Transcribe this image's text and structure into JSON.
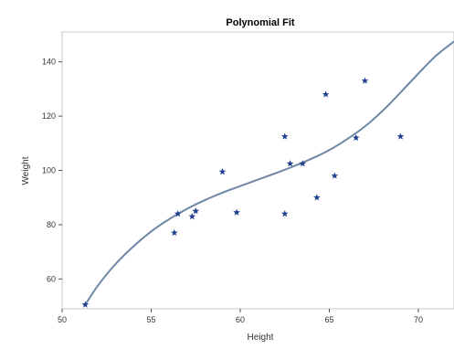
{
  "chart_data": {
    "type": "scatter",
    "title": "Polynomial Fit",
    "xlabel": "Height",
    "ylabel": "Weight",
    "xlim": [
      50,
      72
    ],
    "ylim": [
      49,
      151
    ],
    "xticks": [
      50,
      55,
      60,
      65,
      70
    ],
    "yticks": [
      60,
      80,
      100,
      120,
      140
    ],
    "grid": false,
    "series": [
      {
        "marker": "star",
        "color": "#1f3f8f",
        "points": [
          [
            51.3,
            50.5
          ],
          [
            56.3,
            77.0
          ],
          [
            56.5,
            84.0
          ],
          [
            57.3,
            83.0
          ],
          [
            57.5,
            85.0
          ],
          [
            59.0,
            99.5
          ],
          [
            59.8,
            84.5
          ],
          [
            62.5,
            112.5
          ],
          [
            62.5,
            84.0
          ],
          [
            62.8,
            102.5
          ],
          [
            63.5,
            102.5
          ],
          [
            64.3,
            90.0
          ],
          [
            64.8,
            128.0
          ],
          [
            65.3,
            98.0
          ],
          [
            66.5,
            112.0
          ],
          [
            67.0,
            133.0
          ],
          [
            69.0,
            112.5
          ]
        ]
      }
    ],
    "fit": {
      "type": "polynomial",
      "color": "#6f86a6",
      "curve": [
        [
          51.3,
          50.5
        ],
        [
          52.0,
          57.5
        ],
        [
          53.0,
          65.5
        ],
        [
          54.0,
          72.0
        ],
        [
          55.0,
          77.5
        ],
        [
          56.0,
          82.0
        ],
        [
          57.0,
          85.8
        ],
        [
          58.0,
          89.0
        ],
        [
          59.0,
          91.8
        ],
        [
          60.0,
          94.2
        ],
        [
          61.0,
          96.6
        ],
        [
          62.0,
          99.0
        ],
        [
          63.0,
          101.5
        ],
        [
          64.0,
          104.3
        ],
        [
          65.0,
          107.5
        ],
        [
          66.0,
          111.5
        ],
        [
          67.0,
          116.2
        ],
        [
          68.0,
          122.0
        ],
        [
          69.0,
          128.7
        ],
        [
          70.0,
          135.7
        ],
        [
          71.0,
          142.3
        ],
        [
          72.0,
          147.5
        ]
      ]
    }
  }
}
